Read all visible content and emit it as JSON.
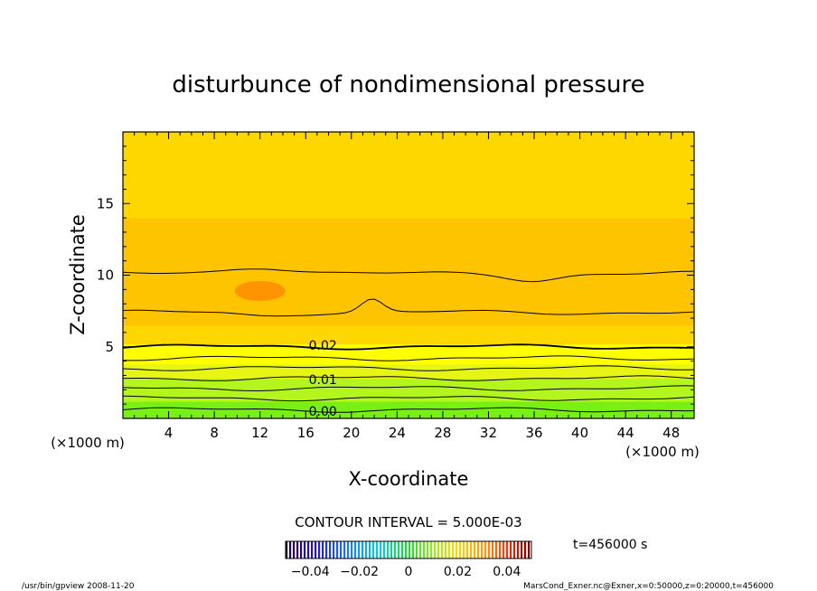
{
  "chart_data": {
    "type": "heatmap",
    "title": "disturbunce of nondimensional pressure",
    "xlabel": "X-coordinate",
    "ylabel": "Z-coordinate",
    "x_unit_left": "(×1000 m)",
    "x_unit_right": "(×1000 m)",
    "xlim": [
      0,
      50
    ],
    "ylim": [
      0,
      20
    ],
    "x_ticks": [
      4,
      8,
      12,
      16,
      20,
      24,
      28,
      32,
      36,
      40,
      44,
      48
    ],
    "y_ticks": [
      5,
      10,
      15
    ],
    "contour_labels": [
      {
        "text": "0.02",
        "x": 17.5,
        "z": 5.1
      },
      {
        "text": "0.01",
        "x": 17.5,
        "z": 2.7
      },
      {
        "text": "0.00",
        "x": 17.5,
        "z": 0.5
      }
    ],
    "contour_interval_text": "CONTOUR INTERVAL = 5.000E-03",
    "contour_interval": 0.005,
    "colorbar": {
      "range": [
        -0.05,
        0.05
      ],
      "tick_values": [
        -0.04,
        -0.02,
        0,
        0.02,
        0.04
      ],
      "tick_labels": [
        "−0.04",
        "−0.02",
        "0",
        "0.02",
        "0.04"
      ]
    },
    "time_label": "t=456000 s",
    "field_profile": [
      {
        "z": 0.0,
        "value": -0.002
      },
      {
        "z": 1.2,
        "value": 0.003
      },
      {
        "z": 2.0,
        "value": 0.007
      },
      {
        "z": 2.8,
        "value": 0.01
      },
      {
        "z": 3.8,
        "value": 0.014
      },
      {
        "z": 4.6,
        "value": 0.018
      },
      {
        "z": 5.2,
        "value": 0.021
      },
      {
        "z": 6.5,
        "value": 0.026
      },
      {
        "z": 7.5,
        "value": 0.029
      },
      {
        "z": 9.0,
        "value": 0.031
      },
      {
        "z": 10.2,
        "value": 0.029
      },
      {
        "z": 12.0,
        "value": 0.026
      },
      {
        "z": 14.0,
        "value": 0.024
      },
      {
        "z": 16.0,
        "value": 0.023
      },
      {
        "z": 20.0,
        "value": 0.022
      }
    ],
    "colors": {
      "bands": [
        "#10c810",
        "#3cdc14",
        "#78f014",
        "#b4f51e",
        "#e6f514",
        "#ffff00",
        "#ffd700",
        "#ffc400",
        "#ffb000",
        "#ff9f00"
      ],
      "line": "#000000"
    }
  },
  "footer": {
    "left": "/usr/bin/gpview   2008-11-20",
    "right": "MarsCond_Exner.nc@Exner,x=0:50000,z=0:20000,t=456000"
  }
}
